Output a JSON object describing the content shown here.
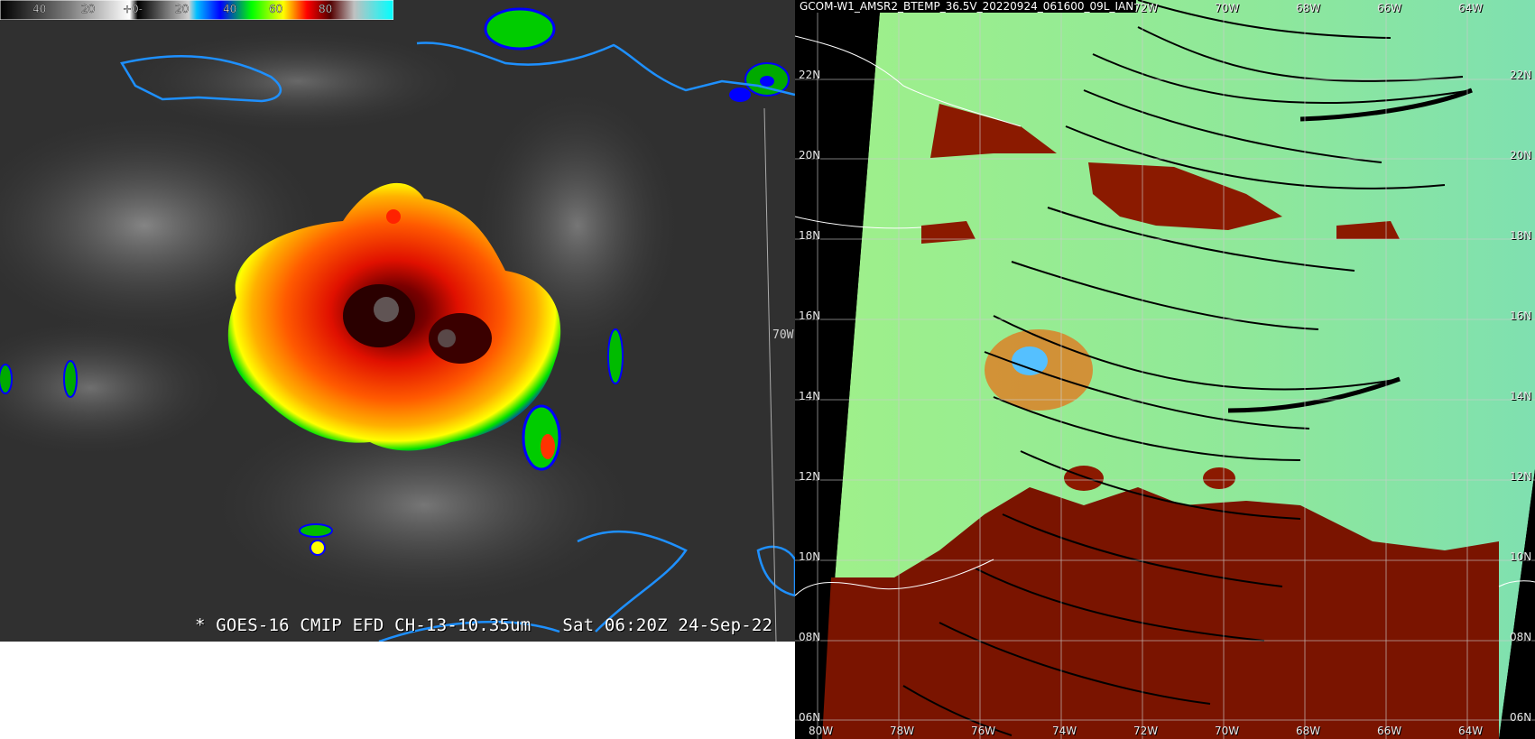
{
  "goes": {
    "caption": "* GOES-16 CMIP EFD CH-13-10.35um   Sat 06:20Z 24-Sep-22",
    "lon_label": "70W",
    "colorbar": {
      "ticks": [
        "40",
        "20",
        "+0-",
        "20",
        "40",
        "60",
        "80"
      ],
      "colors": [
        "#111111",
        "#666666",
        "#ffffff",
        "#7a7a7a",
        "#00bfff",
        "#0000ff",
        "#00ff00",
        "#ffff00",
        "#ff0000",
        "#550000",
        "#c0c0c0",
        "#a020f0"
      ]
    },
    "colors": {
      "coastline": "#1e90ff",
      "cloud_cold": "#8b0000",
      "cloud_mid": "#ff4500",
      "cloud_warm": "#ffd700"
    }
  },
  "amsr": {
    "title": "GCOM-W1_AMSR2_BTEMP_36.5V_20220924_061600_09L_IAN",
    "lat_labels": [
      "22N",
      "20N",
      "18N",
      "16N",
      "14N",
      "12N",
      "10N",
      "08N",
      "06N"
    ],
    "lon_top_labels": [
      "72W",
      "70W",
      "68W",
      "66W",
      "64W"
    ],
    "lon_bottom_labels": [
      "80W",
      "78W",
      "76W",
      "74W",
      "72W",
      "70W",
      "68W",
      "66W",
      "64W"
    ],
    "colors": {
      "ocean": "#90ee90",
      "land": "#8b1a00",
      "convection": "#ff9933",
      "swath_edge": "#000000"
    }
  }
}
